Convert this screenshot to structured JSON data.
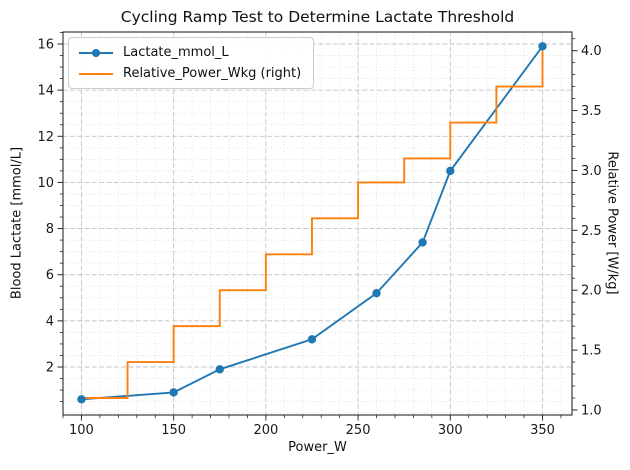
{
  "title": "Cycling Ramp Test to Determine Lactate Threshold",
  "legend": {
    "position": "upper left",
    "items": [
      {
        "label": "Lactate_mmol_L",
        "color": "#1f77b4",
        "marker": "circle-on-line"
      },
      {
        "label": "Relative_Power_Wkg (right)",
        "color": "#ff7f0e",
        "marker": "line"
      }
    ]
  },
  "chart_data": {
    "type": "line",
    "title": "Cycling Ramp Test to Determine Lactate Threshold",
    "xlabel": "Power_W",
    "ylabel_left": "Blood Lactate [mmol/L]",
    "ylabel_right": "Relative Power [W/kg]",
    "x_tick_labels": [
      "100",
      "150",
      "200",
      "250",
      "300",
      "350"
    ],
    "x_tick_values": [
      100,
      150,
      200,
      250,
      300,
      350
    ],
    "left_tick_labels": [
      "2",
      "4",
      "6",
      "8",
      "10",
      "12",
      "14",
      "16"
    ],
    "left_tick_values": [
      2,
      4,
      6,
      8,
      10,
      12,
      14,
      16
    ],
    "right_tick_labels": [
      "1.0",
      "1.5",
      "2.0",
      "2.5",
      "3.0",
      "3.5",
      "4.0"
    ],
    "right_tick_values": [
      1.0,
      1.5,
      2.0,
      2.5,
      3.0,
      3.5,
      4.0
    ],
    "xlim": [
      90,
      366
    ],
    "ylim_left": [
      -0.08,
      16.52
    ],
    "ylim_right": [
      0.958,
      4.156
    ],
    "grid": {
      "major": "dashed",
      "minor": "dotted",
      "minor_x_step": 10,
      "minor_y_step": 0.5
    },
    "legend_position": "upper left",
    "colors": {
      "lactate": "#1f77b4",
      "relative_power": "#ff7f0e"
    },
    "series": [
      {
        "name": "Lactate_mmol_L",
        "axis": "left",
        "style": "line+markers",
        "color": "#1f77b4",
        "x": [
          100,
          150,
          175,
          225,
          260,
          285,
          300,
          350
        ],
        "y": [
          0.6,
          0.9,
          1.9,
          3.2,
          5.2,
          7.4,
          10.5,
          15.9
        ]
      },
      {
        "name": "Relative_Power_Wkg",
        "axis": "right",
        "style": "step-post",
        "color": "#ff7f0e",
        "x": [
          100,
          125,
          150,
          175,
          200,
          225,
          250,
          275,
          300,
          325,
          350
        ],
        "y": [
          1.1,
          1.4,
          1.7,
          2.0,
          2.3,
          2.6,
          2.9,
          3.1,
          3.4,
          3.7,
          4.0
        ]
      }
    ]
  }
}
